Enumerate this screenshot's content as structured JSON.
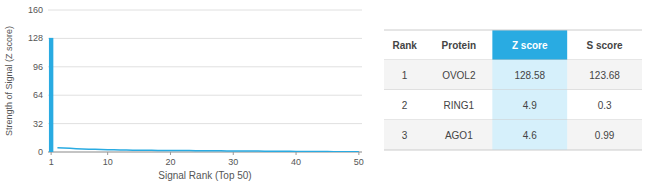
{
  "chart_data": [
    {
      "type": "bar",
      "xlabel": "Signal Rank (Top 50)",
      "ylabel": "Strength of Signal (Z score)",
      "xlim": [
        0.5,
        50.5
      ],
      "xticks": [
        1,
        10,
        20,
        30,
        40,
        50
      ],
      "ylim": [
        0,
        160
      ],
      "yticks": [
        0,
        32,
        64,
        96,
        128,
        160
      ],
      "grid": true,
      "series": [
        {
          "type": "bar",
          "color": "#29ABE2",
          "x": [
            1
          ],
          "values": [
            128.58
          ]
        },
        {
          "type": "line",
          "color": "#29ABE2",
          "x": [
            2,
            3,
            4,
            5,
            6,
            7,
            8,
            9,
            10,
            11,
            12,
            13,
            14,
            15,
            16,
            17,
            18,
            19,
            20,
            21,
            22,
            23,
            24,
            25,
            26,
            27,
            28,
            29,
            30,
            31,
            32,
            33,
            34,
            35,
            36,
            37,
            38,
            39,
            40,
            41,
            42,
            43,
            44,
            45,
            46,
            47,
            48,
            49,
            50
          ],
          "values": [
            4.9,
            4.6,
            4.2,
            3.8,
            3.5,
            3.2,
            3.0,
            2.8,
            2.6,
            2.4,
            2.3,
            2.2,
            2.1,
            2.0,
            1.9,
            1.85,
            1.8,
            1.75,
            1.7,
            1.65,
            1.6,
            1.55,
            1.5,
            1.45,
            1.4,
            1.35,
            1.3,
            1.25,
            1.2,
            1.15,
            1.1,
            1.05,
            1.0,
            0.95,
            0.9,
            0.85,
            0.8,
            0.75,
            0.7,
            0.65,
            0.6,
            0.55,
            0.5,
            0.45,
            0.4,
            0.35,
            0.3,
            0.25,
            0.2
          ]
        }
      ]
    },
    {
      "type": "table",
      "columns": [
        "Rank",
        "Protein",
        "Z score",
        "S score"
      ],
      "rows": [
        [
          1,
          "OVOL2",
          128.58,
          123.68
        ],
        [
          2,
          "RING1",
          4.9,
          0.3
        ],
        [
          3,
          "AGO1",
          4.6,
          0.99
        ]
      ]
    }
  ]
}
